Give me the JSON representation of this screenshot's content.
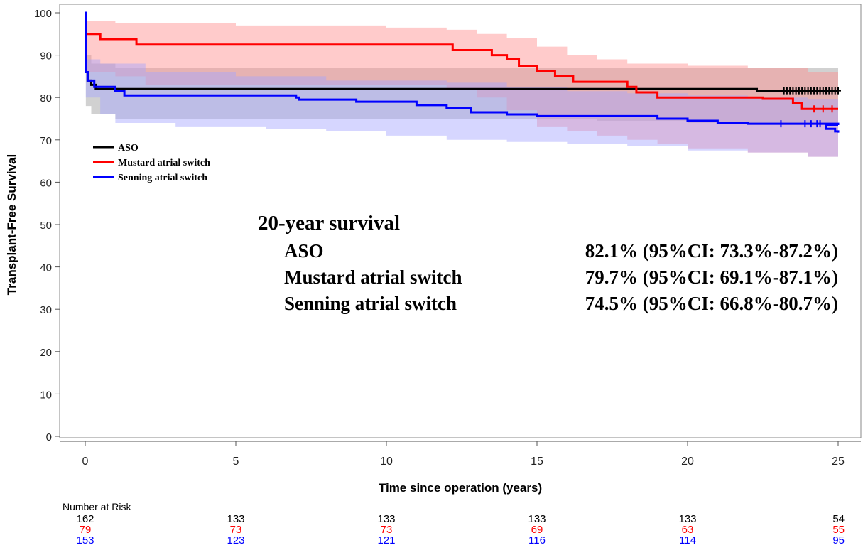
{
  "chart_data": {
    "type": "line",
    "title": "",
    "xlabel": "Time since operation (years)",
    "ylabel": "Transplant-Free Survival",
    "xlim": [
      0,
      25
    ],
    "ylim": [
      0,
      100
    ],
    "xticks": [
      0,
      5,
      10,
      15,
      20,
      25
    ],
    "yticks": [
      0,
      10,
      20,
      30,
      40,
      50,
      60,
      70,
      80,
      90,
      100
    ],
    "grid": false,
    "legend_position": "left",
    "series": [
      {
        "name": "ASO",
        "color": "#000000",
        "ci_color": "#9a9a9a",
        "steps": [
          [
            0,
            100
          ],
          [
            0.02,
            86
          ],
          [
            0.08,
            84
          ],
          [
            0.2,
            83
          ],
          [
            0.35,
            82
          ],
          [
            10,
            82
          ],
          [
            20,
            82
          ],
          [
            22.3,
            81.6
          ],
          [
            25,
            81.6
          ]
        ],
        "ci_lower": [
          [
            0,
            100
          ],
          [
            0.02,
            78
          ],
          [
            0.2,
            76
          ],
          [
            1,
            75
          ],
          [
            10,
            75
          ],
          [
            15,
            75
          ],
          [
            17,
            74.5
          ],
          [
            20,
            74
          ],
          [
            22,
            73.5
          ],
          [
            25,
            73
          ]
        ],
        "ci_upper": [
          [
            0,
            100
          ],
          [
            0.02,
            90
          ],
          [
            0.2,
            88
          ],
          [
            1,
            87
          ],
          [
            10,
            87
          ],
          [
            15,
            87
          ],
          [
            20,
            87
          ],
          [
            22,
            87
          ],
          [
            25,
            86.5
          ]
        ],
        "censor_x": [
          23.2,
          23.3,
          23.4,
          23.5,
          23.6,
          23.7,
          23.8,
          23.9,
          24.0,
          24.1,
          24.2,
          24.3,
          24.4,
          24.5,
          24.6,
          24.7,
          24.8,
          24.9,
          25.0
        ]
      },
      {
        "name": "Mustard atrial switch",
        "color": "#ff0000",
        "ci_color": "#ff8c8c",
        "steps": [
          [
            0,
            100
          ],
          [
            0.02,
            95
          ],
          [
            0.5,
            93.8
          ],
          [
            1.7,
            92.5
          ],
          [
            12,
            92.5
          ],
          [
            12.2,
            91.2
          ],
          [
            13.5,
            90
          ],
          [
            14,
            89
          ],
          [
            14.4,
            87.5
          ],
          [
            15,
            86.2
          ],
          [
            15.6,
            85
          ],
          [
            16.2,
            83.7
          ],
          [
            17,
            83.7
          ],
          [
            18,
            82.5
          ],
          [
            18.3,
            81.2
          ],
          [
            19,
            80
          ],
          [
            22,
            80
          ],
          [
            22.5,
            79.7
          ],
          [
            23.5,
            78.7
          ],
          [
            23.8,
            77.3
          ],
          [
            25,
            77.3
          ]
        ],
        "ci_lower": [
          [
            0,
            100
          ],
          [
            0.02,
            86
          ],
          [
            1,
            85
          ],
          [
            2,
            83
          ],
          [
            10,
            83
          ],
          [
            12,
            82
          ],
          [
            13,
            80
          ],
          [
            14,
            77
          ],
          [
            15,
            73
          ],
          [
            16,
            72
          ],
          [
            17,
            71
          ],
          [
            18,
            70
          ],
          [
            19,
            69
          ],
          [
            20,
            68
          ],
          [
            22,
            67
          ],
          [
            24,
            66
          ],
          [
            25,
            65
          ]
        ],
        "ci_upper": [
          [
            0,
            100
          ],
          [
            0.02,
            98
          ],
          [
            1,
            97.5
          ],
          [
            5,
            97
          ],
          [
            10,
            96.5
          ],
          [
            12,
            96
          ],
          [
            13,
            95
          ],
          [
            14,
            94
          ],
          [
            15,
            92
          ],
          [
            16,
            90
          ],
          [
            17,
            89
          ],
          [
            18,
            88
          ],
          [
            20,
            87.5
          ],
          [
            22,
            87
          ],
          [
            24,
            86
          ],
          [
            25,
            85
          ]
        ],
        "censor_x": [
          24.2,
          24.5,
          24.8
        ]
      },
      {
        "name": "Senning atrial switch",
        "color": "#0000ff",
        "ci_color": "#a5a5ff",
        "steps": [
          [
            0,
            100
          ],
          [
            0.02,
            86
          ],
          [
            0.08,
            84
          ],
          [
            0.3,
            82.5
          ],
          [
            1.0,
            81.5
          ],
          [
            1.3,
            80.5
          ],
          [
            7,
            80
          ],
          [
            7.1,
            79.5
          ],
          [
            9,
            79
          ],
          [
            11,
            78.2
          ],
          [
            12,
            77.5
          ],
          [
            12.8,
            76.5
          ],
          [
            14,
            76
          ],
          [
            15,
            75.6
          ],
          [
            19,
            75
          ],
          [
            20,
            74.5
          ],
          [
            21,
            74
          ],
          [
            22,
            73.8
          ],
          [
            25,
            73.5
          ]
        ],
        "steps_tail": [
          [
            24.6,
            72.6
          ],
          [
            24.9,
            72.0
          ],
          [
            25,
            71.7
          ]
        ],
        "ci_lower": [
          [
            0,
            100
          ],
          [
            0.02,
            80
          ],
          [
            0.5,
            76
          ],
          [
            1,
            74
          ],
          [
            3,
            73
          ],
          [
            6,
            72.5
          ],
          [
            8,
            72
          ],
          [
            10,
            71
          ],
          [
            12,
            70
          ],
          [
            14,
            69.5
          ],
          [
            16,
            69
          ],
          [
            18,
            68.5
          ],
          [
            20,
            67.5
          ],
          [
            22,
            67
          ],
          [
            24,
            66
          ],
          [
            25,
            64
          ]
        ],
        "ci_upper": [
          [
            0,
            100
          ],
          [
            0.02,
            89
          ],
          [
            0.5,
            88
          ],
          [
            2,
            86
          ],
          [
            5,
            85
          ],
          [
            8,
            84
          ],
          [
            10,
            84
          ],
          [
            12,
            83.5
          ],
          [
            14,
            82.5
          ],
          [
            16,
            81.5
          ],
          [
            18,
            81
          ],
          [
            20,
            80.5
          ],
          [
            22,
            80
          ],
          [
            24,
            79.5
          ],
          [
            25,
            79
          ]
        ],
        "censor_x": [
          23.1,
          23.9,
          24.1,
          24.3,
          24.4
        ]
      }
    ],
    "annotation": {
      "heading": "20-year survival",
      "rows": [
        {
          "label": "ASO",
          "value": "82.1% (95%CI: 73.3%-87.2%)"
        },
        {
          "label": "Mustard atrial switch",
          "value": "79.7% (95%CI: 69.1%-87.1%)"
        },
        {
          "label": "Senning atrial switch",
          "value": "74.5% (95%CI: 66.8%-80.7%)"
        }
      ]
    },
    "risk_table": {
      "title": "Number at Risk",
      "times": [
        0,
        5,
        10,
        15,
        20,
        25
      ],
      "rows": [
        {
          "color": "#000000",
          "counts": [
            "162",
            "133",
            "133",
            "133",
            "133",
            "54"
          ]
        },
        {
          "color": "#ff0000",
          "counts": [
            "79",
            "73",
            "73",
            "69",
            "63",
            "55"
          ]
        },
        {
          "color": "#0000ff",
          "counts": [
            "153",
            "123",
            "121",
            "116",
            "114",
            "95"
          ]
        }
      ]
    }
  }
}
